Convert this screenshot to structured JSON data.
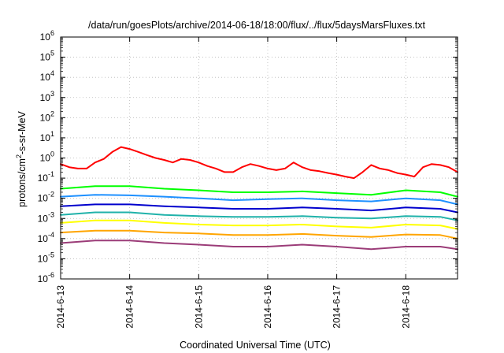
{
  "chart_data": {
    "type": "line",
    "title": "/data/run/goesPlots/archive/2014-06-18/18:00/flux/../flux/5daysMarsFluxes.txt",
    "xlabel": "Coordinated Universal Time (UTC)",
    "ylabel": {
      "prefix": "protons/cm",
      "superscript": "2",
      "suffix": "-s-sr-MeV"
    },
    "x_range": [
      "2014-06-13 00:00",
      "2014-06-18 18:00"
    ],
    "x_ticks": [
      "2014-6-13",
      "2014-6-14",
      "2014-6-15",
      "2014-6-16",
      "2014-6-17",
      "2014-6-18"
    ],
    "y_scale": "log",
    "ylim": [
      1e-06,
      1000000.0
    ],
    "y_ticks": [
      {
        "base": "10",
        "exp": "6"
      },
      {
        "base": "10",
        "exp": "5"
      },
      {
        "base": "10",
        "exp": "4"
      },
      {
        "base": "10",
        "exp": "3"
      },
      {
        "base": "10",
        "exp": "2"
      },
      {
        "base": "10",
        "exp": "1"
      },
      {
        "base": "10",
        "exp": "0"
      },
      {
        "base": "10",
        "exp": "-1"
      },
      {
        "base": "10",
        "exp": "-2"
      },
      {
        "base": "10",
        "exp": "-3"
      },
      {
        "base": "10",
        "exp": "-4"
      },
      {
        "base": "10",
        "exp": "-5"
      },
      {
        "base": "10",
        "exp": "-6"
      }
    ],
    "grid": true,
    "series": [
      {
        "color": "#ff0000",
        "x": [
          "2014-06-13 00:00",
          "2014-06-13 03:00",
          "2014-06-13 06:00",
          "2014-06-13 09:00",
          "2014-06-13 12:00",
          "2014-06-13 15:00",
          "2014-06-13 18:00",
          "2014-06-13 21:00",
          "2014-06-14 00:00",
          "2014-06-14 03:00",
          "2014-06-14 06:00",
          "2014-06-14 09:00",
          "2014-06-14 12:00",
          "2014-06-14 15:00",
          "2014-06-14 18:00",
          "2014-06-14 21:00",
          "2014-06-15 00:00",
          "2014-06-15 03:00",
          "2014-06-15 06:00",
          "2014-06-15 09:00",
          "2014-06-15 12:00",
          "2014-06-15 15:00",
          "2014-06-15 18:00",
          "2014-06-15 21:00",
          "2014-06-16 00:00",
          "2014-06-16 03:00",
          "2014-06-16 06:00",
          "2014-06-16 09:00",
          "2014-06-16 12:00",
          "2014-06-16 15:00",
          "2014-06-16 18:00",
          "2014-06-16 21:00",
          "2014-06-17 00:00",
          "2014-06-17 03:00",
          "2014-06-17 06:00",
          "2014-06-17 09:00",
          "2014-06-17 12:00",
          "2014-06-17 15:00",
          "2014-06-17 18:00",
          "2014-06-17 21:00",
          "2014-06-18 00:00",
          "2014-06-18 03:00",
          "2014-06-18 06:00",
          "2014-06-18 09:00",
          "2014-06-18 12:00",
          "2014-06-18 15:00",
          "2014-06-18 18:00"
        ],
        "values": [
          0.5,
          0.35,
          0.3,
          0.3,
          0.6,
          0.9,
          2.0,
          3.5,
          2.8,
          2.0,
          1.4,
          1.0,
          0.8,
          0.6,
          0.9,
          0.8,
          0.6,
          0.4,
          0.3,
          0.2,
          0.2,
          0.35,
          0.5,
          0.4,
          0.3,
          0.25,
          0.3,
          0.6,
          0.35,
          0.25,
          0.22,
          0.18,
          0.15,
          0.12,
          0.1,
          0.2,
          0.45,
          0.3,
          0.25,
          0.18,
          0.15,
          0.12,
          0.35,
          0.5,
          0.45,
          0.35,
          0.2
        ]
      },
      {
        "color": "#00ff00",
        "x": [
          "2014-06-13 00:00",
          "2014-06-13 12:00",
          "2014-06-14 00:00",
          "2014-06-14 12:00",
          "2014-06-15 00:00",
          "2014-06-15 12:00",
          "2014-06-16 00:00",
          "2014-06-16 12:00",
          "2014-06-17 00:00",
          "2014-06-17 12:00",
          "2014-06-18 00:00",
          "2014-06-18 12:00",
          "2014-06-18 18:00"
        ],
        "values": [
          0.03,
          0.04,
          0.04,
          0.03,
          0.025,
          0.02,
          0.02,
          0.022,
          0.018,
          0.015,
          0.025,
          0.02,
          0.012
        ]
      },
      {
        "color": "#1e90ff",
        "x": [
          "2014-06-13 00:00",
          "2014-06-13 12:00",
          "2014-06-14 00:00",
          "2014-06-14 12:00",
          "2014-06-15 00:00",
          "2014-06-15 12:00",
          "2014-06-16 00:00",
          "2014-06-16 12:00",
          "2014-06-17 00:00",
          "2014-06-17 12:00",
          "2014-06-18 00:00",
          "2014-06-18 12:00",
          "2014-06-18 18:00"
        ],
        "values": [
          0.012,
          0.015,
          0.014,
          0.012,
          0.01,
          0.008,
          0.009,
          0.01,
          0.008,
          0.007,
          0.01,
          0.008,
          0.005
        ]
      },
      {
        "color": "#0000cd",
        "x": [
          "2014-06-13 00:00",
          "2014-06-13 12:00",
          "2014-06-14 00:00",
          "2014-06-14 12:00",
          "2014-06-15 00:00",
          "2014-06-15 12:00",
          "2014-06-16 00:00",
          "2014-06-16 12:00",
          "2014-06-17 00:00",
          "2014-06-17 12:00",
          "2014-06-18 00:00",
          "2014-06-18 12:00",
          "2014-06-18 18:00"
        ],
        "values": [
          0.004,
          0.005,
          0.005,
          0.004,
          0.0035,
          0.003,
          0.003,
          0.0035,
          0.003,
          0.0025,
          0.0035,
          0.003,
          0.002
        ]
      },
      {
        "color": "#20b2aa",
        "x": [
          "2014-06-13 00:00",
          "2014-06-13 12:00",
          "2014-06-14 00:00",
          "2014-06-14 12:00",
          "2014-06-15 00:00",
          "2014-06-15 12:00",
          "2014-06-16 00:00",
          "2014-06-16 12:00",
          "2014-06-17 00:00",
          "2014-06-17 12:00",
          "2014-06-18 00:00",
          "2014-06-18 12:00",
          "2014-06-18 18:00"
        ],
        "values": [
          0.0015,
          0.002,
          0.002,
          0.0015,
          0.0013,
          0.0012,
          0.0012,
          0.0013,
          0.0011,
          0.001,
          0.0013,
          0.0012,
          0.0008
        ]
      },
      {
        "color": "#ffff00",
        "x": [
          "2014-06-13 00:00",
          "2014-06-13 12:00",
          "2014-06-14 00:00",
          "2014-06-14 12:00",
          "2014-06-15 00:00",
          "2014-06-15 12:00",
          "2014-06-16 00:00",
          "2014-06-16 12:00",
          "2014-06-17 00:00",
          "2014-06-17 12:00",
          "2014-06-18 00:00",
          "2014-06-18 12:00",
          "2014-06-18 18:00"
        ],
        "values": [
          0.0006,
          0.0008,
          0.0008,
          0.0006,
          0.0005,
          0.00045,
          0.00045,
          0.0005,
          0.0004,
          0.00035,
          0.0005,
          0.00045,
          0.0003
        ]
      },
      {
        "color": "#ffa500",
        "x": [
          "2014-06-13 00:00",
          "2014-06-13 12:00",
          "2014-06-14 00:00",
          "2014-06-14 12:00",
          "2014-06-15 00:00",
          "2014-06-15 12:00",
          "2014-06-16 00:00",
          "2014-06-16 12:00",
          "2014-06-17 00:00",
          "2014-06-17 12:00",
          "2014-06-18 00:00",
          "2014-06-18 12:00",
          "2014-06-18 18:00"
        ],
        "values": [
          0.0002,
          0.00025,
          0.00025,
          0.0002,
          0.00018,
          0.00015,
          0.00015,
          0.00017,
          0.00014,
          0.00012,
          0.00016,
          0.00015,
          0.0001
        ]
      },
      {
        "color": "#9b3c78",
        "x": [
          "2014-06-13 00:00",
          "2014-06-13 12:00",
          "2014-06-14 00:00",
          "2014-06-14 12:00",
          "2014-06-15 00:00",
          "2014-06-15 12:00",
          "2014-06-16 00:00",
          "2014-06-16 12:00",
          "2014-06-17 00:00",
          "2014-06-17 12:00",
          "2014-06-18 00:00",
          "2014-06-18 12:00",
          "2014-06-18 18:00"
        ],
        "values": [
          6e-05,
          8e-05,
          8e-05,
          6e-05,
          5e-05,
          4e-05,
          4e-05,
          5e-05,
          4e-05,
          3e-05,
          4e-05,
          4e-05,
          3e-05
        ]
      }
    ]
  }
}
